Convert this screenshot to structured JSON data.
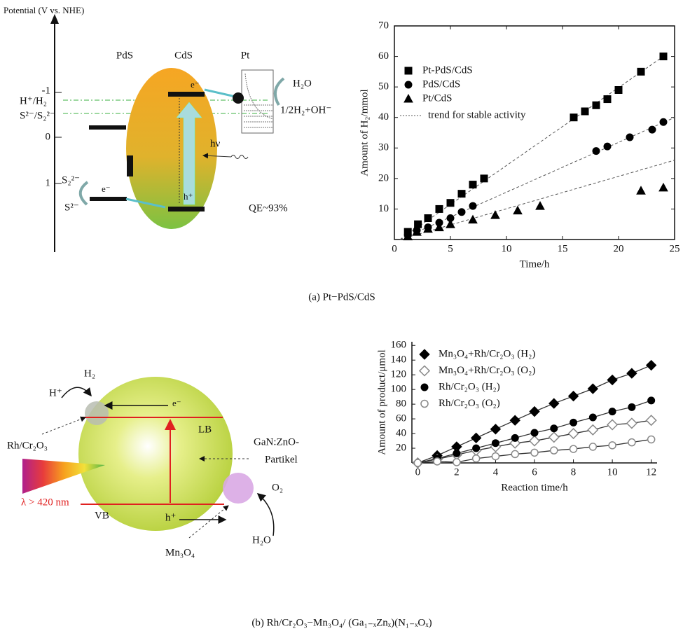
{
  "chart_data": [
    {
      "type": "scatter",
      "x_label": "Time/h",
      "y_label": "Amount of H₂/mmol",
      "xlim": [
        0,
        25
      ],
      "ylim": [
        0,
        70
      ],
      "xticks": [
        0,
        5,
        10,
        15,
        20,
        25
      ],
      "yticks": [
        10,
        20,
        30,
        40,
        50,
        60,
        70
      ],
      "frame": true,
      "legend": "upper left",
      "series": [
        {
          "name": "Pt-PdS/CdS",
          "marker": "square",
          "filled": true,
          "color": "#000000",
          "x": [
            1.2,
            2.1,
            3,
            4,
            5,
            6,
            7,
            8,
            16,
            17,
            18,
            19,
            20,
            22,
            24
          ],
          "values": [
            2.5,
            5,
            7,
            10,
            12,
            15,
            18,
            20,
            40,
            42,
            44,
            46,
            49,
            55,
            60
          ]
        },
        {
          "name": "PdS/CdS",
          "marker": "circle",
          "filled": true,
          "color": "#000000",
          "x": [
            1.2,
            2,
            3,
            4,
            5,
            6,
            7,
            18,
            19,
            21,
            23,
            24
          ],
          "values": [
            1.5,
            3,
            4,
            5.5,
            7,
            9,
            11,
            29,
            30.5,
            33.5,
            36,
            38.5
          ]
        },
        {
          "name": "Pt/CdS",
          "marker": "triangle",
          "filled": true,
          "color": "#000000",
          "x": [
            1.2,
            2,
            3,
            4,
            5,
            7,
            9,
            11,
            13,
            22,
            24
          ],
          "values": [
            1,
            2.5,
            3.5,
            4,
            5,
            6.5,
            8,
            9.5,
            11,
            16,
            17
          ]
        }
      ],
      "trend": {
        "name": "trend for stable activity",
        "color": "#555555",
        "lines": [
          {
            "x": [
              0.5,
              24
            ],
            "values": [
              0,
              60
            ]
          },
          {
            "x": [
              0.5,
              25
            ],
            "values": [
              0,
              40
            ]
          },
          {
            "x": [
              0.5,
              25
            ],
            "values": [
              0,
              26
            ]
          }
        ]
      }
    },
    {
      "type": "scatter",
      "x_label": "Reaction time/h",
      "y_label": "Amount of product/μmol",
      "xlim": [
        -0.3,
        12.3
      ],
      "ylim": [
        0,
        165
      ],
      "xticks": [
        0,
        2,
        4,
        6,
        8,
        10,
        12
      ],
      "yticks": [
        20,
        40,
        60,
        80,
        100,
        120,
        140,
        160
      ],
      "frame": false,
      "legend": "upper left",
      "connect": true,
      "series": [
        {
          "name": "Mn₃O₄+Rh/Cr₂O₃ (H₂)",
          "marker": "diamond",
          "filled": true,
          "color": "#000000",
          "x": [
            0,
            1,
            2,
            3,
            4,
            5,
            6,
            7,
            8,
            9,
            10,
            11,
            12
          ],
          "values": [
            0,
            10,
            22,
            34,
            46,
            58,
            70,
            81,
            91,
            101,
            113,
            122,
            133
          ]
        },
        {
          "name": "Mn₃O₄+Rh/Cr₂O₃ (O₂)",
          "marker": "diamond",
          "filled": false,
          "color": "#888888",
          "x": [
            0,
            1,
            2,
            3,
            4,
            5,
            6,
            7,
            8,
            9,
            10,
            11,
            12
          ],
          "values": [
            0,
            5,
            11,
            17,
            22,
            27,
            30,
            35,
            40,
            45,
            52,
            54,
            58
          ]
        },
        {
          "name": "Rh/Cr₂O₃ (H₂)",
          "marker": "circle",
          "filled": true,
          "color": "#000000",
          "x": [
            0,
            1,
            2,
            3,
            4,
            5,
            6,
            7,
            8,
            9,
            10,
            11,
            12
          ],
          "values": [
            0,
            6,
            13,
            20,
            27,
            34,
            41,
            47,
            55,
            62,
            70,
            76,
            85
          ]
        },
        {
          "name": "Rh/Cr₂O₃ (O₂)",
          "marker": "circle",
          "filled": false,
          "color": "#888888",
          "x": [
            0,
            1,
            2,
            3,
            4,
            5,
            6,
            7,
            8,
            9,
            10,
            11,
            12
          ],
          "values": [
            0,
            2,
            1,
            6,
            9,
            12,
            14,
            17,
            19,
            22,
            24,
            28,
            32
          ]
        }
      ]
    }
  ],
  "diagram_a": {
    "axis_label": "Potential (V vs. NHE)",
    "ticks": [
      "-1",
      "0",
      "1"
    ],
    "pds": "PdS",
    "cds": "CdS",
    "pt": "Pt",
    "h_couple": "H⁺/H₂",
    "s_couple": "S²⁻/S₂²⁻",
    "e_cb": "e⁻",
    "h_vb": "h⁺",
    "hv": "hν",
    "h2o": "H₂O",
    "products": "1/2H₂+OH⁻",
    "s2_2": "S₂²⁻",
    "s2": "S²⁻",
    "e_pds": "e⁻",
    "qe": "QE~93%"
  },
  "diagram_b": {
    "h2": "H₂",
    "h_plus": "H⁺",
    "e": "e⁻",
    "lb": "LB",
    "rh": "Rh/Cr₂O₃",
    "particle_1": "GaN:ZnO-",
    "particle_2": "Partikel",
    "lambda": "λ > 420 nm",
    "vb": "VB",
    "h": "h⁺",
    "o2": "O₂",
    "h2o": "H₂O",
    "mn": "Mn₃O₄"
  },
  "captions": [
    "(a) Pt−PdS/CdS",
    "(b) Rh/Cr₂O₃−Mn₃O₄/ (Ga₁₋ₓZnₓ)(N₁₋ₓOₓ)"
  ]
}
